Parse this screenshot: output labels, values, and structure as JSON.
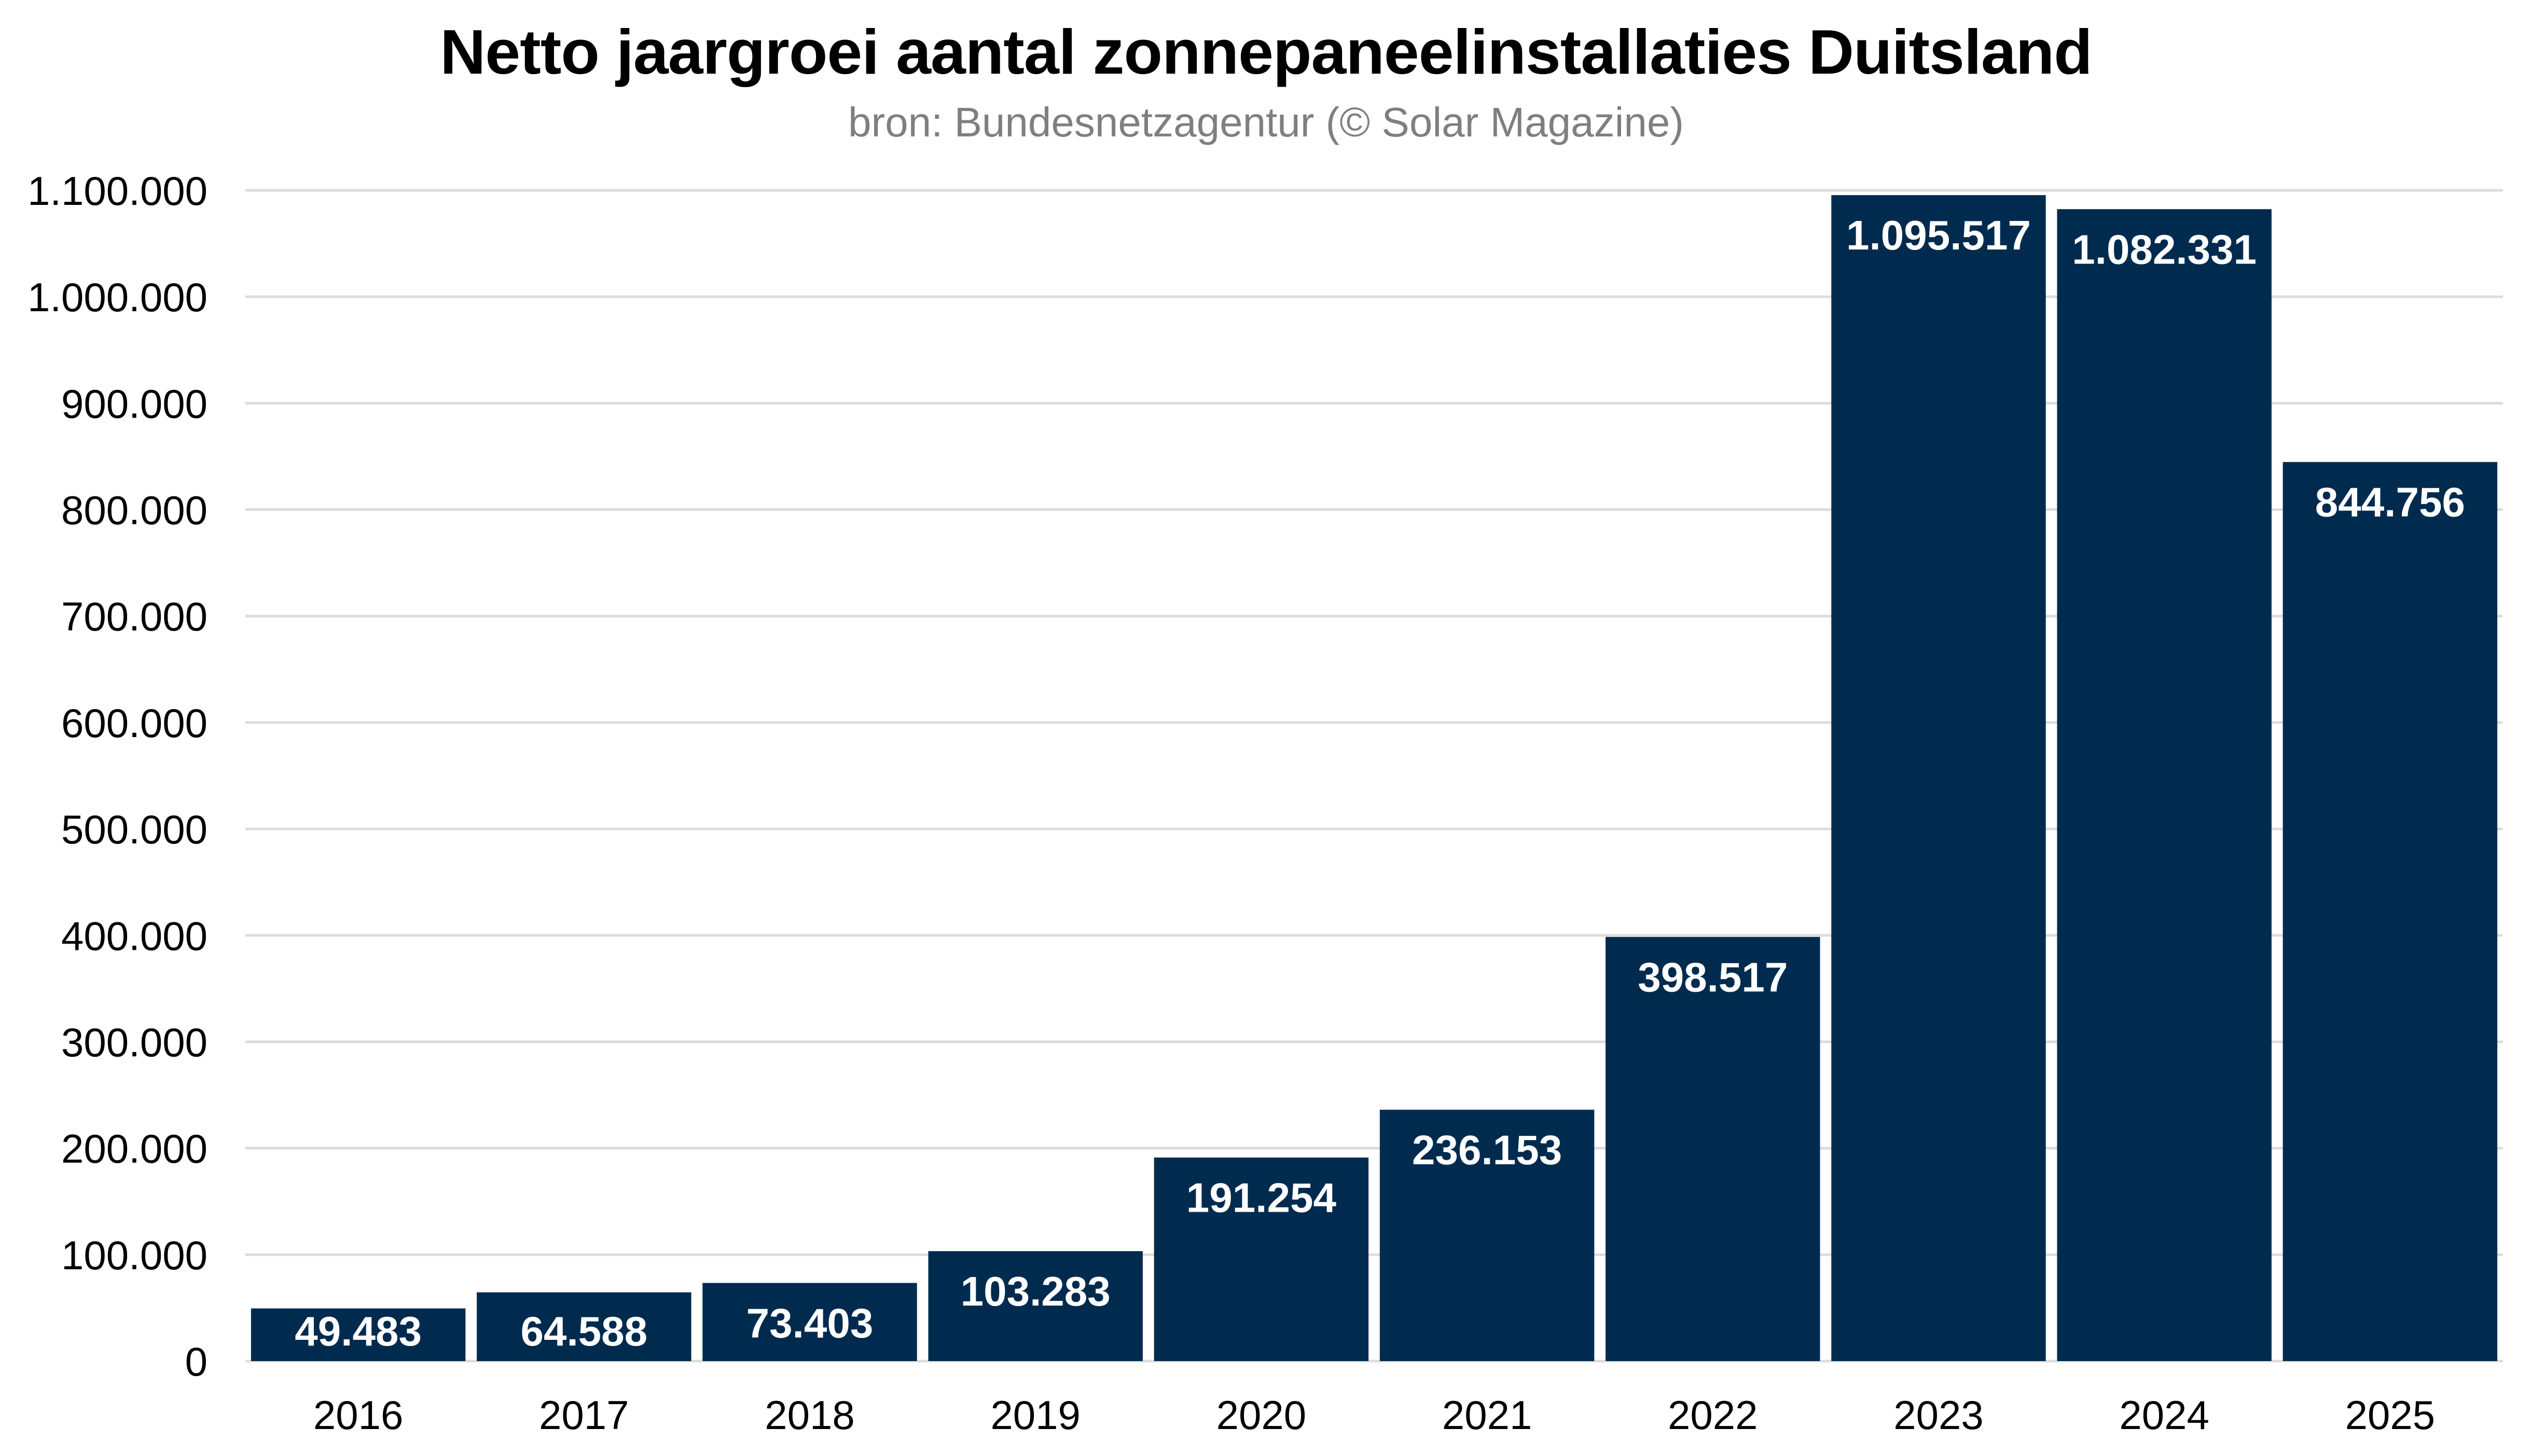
{
  "chart_data": {
    "type": "bar",
    "title": "Netto jaargroei aantal zonnepaneelinstallaties Duitsland",
    "subtitle": "bron: Bundesnetzagentur (© Solar Magazine)",
    "xlabel": "",
    "ylabel": "",
    "categories": [
      "2016",
      "2017",
      "2018",
      "2019",
      "2020",
      "2021",
      "2022",
      "2023",
      "2024",
      "2025"
    ],
    "values": [
      49483,
      64588,
      73403,
      103283,
      191254,
      236153,
      398517,
      1095517,
      1082331,
      844756
    ],
    "data_labels": [
      "49.483",
      "64.588",
      "73.403",
      "103.283",
      "191.254",
      "236.153",
      "398.517",
      "1.095.517",
      "1.082.331",
      "844.756"
    ],
    "ylim": [
      0,
      1100000
    ],
    "yticks": [
      0,
      100000,
      200000,
      300000,
      400000,
      500000,
      600000,
      700000,
      800000,
      900000,
      1000000,
      1100000
    ],
    "ytick_labels": [
      "0",
      "100.000",
      "200.000",
      "300.000",
      "400.000",
      "500.000",
      "600.000",
      "700.000",
      "800.000",
      "900.000",
      "1.000.000",
      "1.100.000"
    ],
    "grid": true,
    "legend": "none",
    "colors": {
      "bar": "#002b4f",
      "grid": "#dcdcdc",
      "label": "#ffffff"
    }
  }
}
